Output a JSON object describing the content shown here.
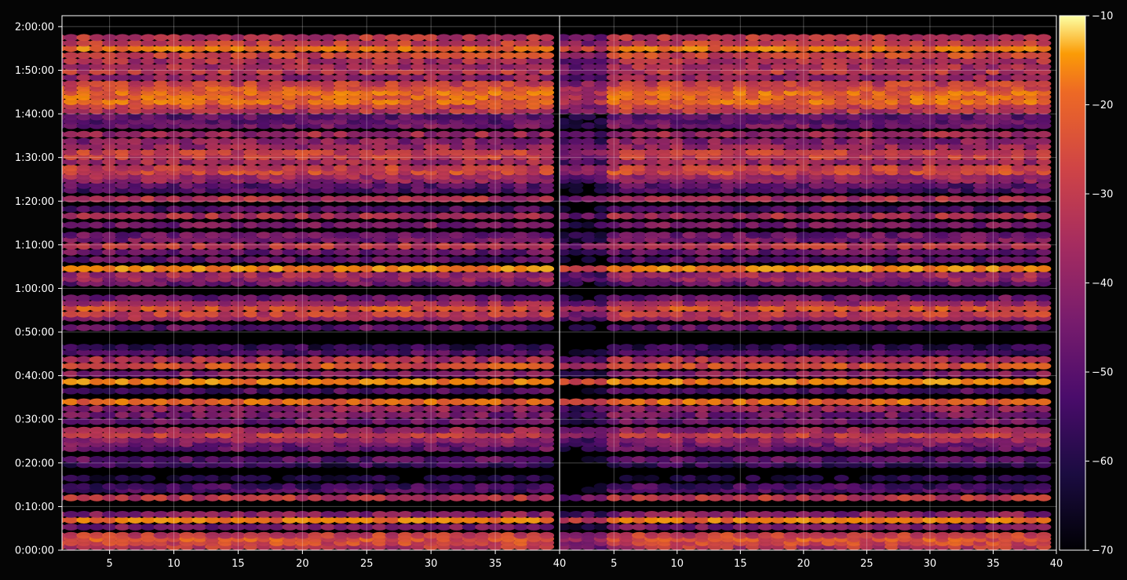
{
  "chart_data": {
    "type": "heatmap",
    "title": "",
    "xlabel": "",
    "ylabel": "",
    "panels": [
      {
        "name": "",
        "xlim": [
          1.3,
          40
        ]
      },
      {
        "name": "",
        "xlim": [
          0.7,
          40
        ]
      }
    ],
    "x_ticks": [
      "5",
      "10",
      "15",
      "20",
      "25",
      "30",
      "35",
      "40"
    ],
    "x_tick_values": [
      5,
      10,
      15,
      20,
      25,
      30,
      35,
      40
    ],
    "y_ticks": [
      "0:00:00",
      "0:10:00",
      "0:20:00",
      "0:30:00",
      "0:40:00",
      "0:50:00",
      "1:00:00",
      "1:10:00",
      "1:20:00",
      "1:30:00",
      "1:40:00",
      "1:50:00",
      "2:00:00"
    ],
    "y_tick_minutes": [
      0,
      10,
      20,
      30,
      40,
      50,
      60,
      70,
      80,
      90,
      100,
      110,
      120
    ],
    "ylim_minutes": [
      0,
      122.5
    ],
    "x_range": [
      1,
      39
    ],
    "grid": true,
    "colormap": "inferno",
    "colorbar": {
      "range": [
        -70,
        -10
      ],
      "ticks": [
        "−10",
        "−20",
        "−30",
        "−40",
        "−50",
        "−60",
        "−70"
      ],
      "tick_values": [
        -10,
        -20,
        -30,
        -40,
        -50,
        -60,
        -70
      ]
    },
    "bands": [
      {
        "t": 0.8,
        "level": -40
      },
      {
        "t": 1.7,
        "level": -36
      },
      {
        "t": 2.6,
        "level": -34
      },
      {
        "t": 3.4,
        "level": -38
      },
      {
        "t": 5.3,
        "level": -50
      },
      {
        "t": 6.9,
        "level": -28
      },
      {
        "t": 8.2,
        "level": -48
      },
      {
        "t": 12.0,
        "level": -40
      },
      {
        "t": 13.8,
        "level": -56
      },
      {
        "t": 14.6,
        "level": -58
      },
      {
        "t": 16.5,
        "level": -64
      },
      {
        "t": 19.6,
        "level": -60
      },
      {
        "t": 20.8,
        "level": -54
      },
      {
        "t": 23.3,
        "level": -52
      },
      {
        "t": 24.4,
        "level": -50
      },
      {
        "t": 25.3,
        "level": -46
      },
      {
        "t": 26.4,
        "level": -38
      },
      {
        "t": 27.5,
        "level": -46
      },
      {
        "t": 29.5,
        "level": -52
      },
      {
        "t": 31.0,
        "level": -50
      },
      {
        "t": 32.4,
        "level": -46
      },
      {
        "t": 34.0,
        "level": -30
      },
      {
        "t": 36.5,
        "level": -56
      },
      {
        "t": 38.6,
        "level": -26
      },
      {
        "t": 40.4,
        "level": -48
      },
      {
        "t": 42.2,
        "level": -34
      },
      {
        "t": 43.7,
        "level": -42
      },
      {
        "t": 45.3,
        "level": -56
      },
      {
        "t": 46.5,
        "level": -60
      },
      {
        "t": 51.0,
        "level": -54
      },
      {
        "t": 53.2,
        "level": -44
      },
      {
        "t": 54.1,
        "level": -38
      },
      {
        "t": 55.5,
        "level": -34
      },
      {
        "t": 56.6,
        "level": -44
      },
      {
        "t": 57.8,
        "level": -52
      },
      {
        "t": 61.2,
        "level": -52
      },
      {
        "t": 62.2,
        "level": -46
      },
      {
        "t": 63.1,
        "level": -44
      },
      {
        "t": 64.5,
        "level": -26
      },
      {
        "t": 66.6,
        "level": -54
      },
      {
        "t": 68.3,
        "level": -52
      },
      {
        "t": 69.7,
        "level": -40
      },
      {
        "t": 71.2,
        "level": -50
      },
      {
        "t": 72.2,
        "level": -52
      },
      {
        "t": 74.5,
        "level": -50
      },
      {
        "t": 76.6,
        "level": -42
      },
      {
        "t": 78.2,
        "level": -56
      },
      {
        "t": 80.5,
        "level": -42
      },
      {
        "t": 82.5,
        "level": -56
      },
      {
        "t": 83.6,
        "level": -54
      },
      {
        "t": 84.8,
        "level": -46
      },
      {
        "t": 85.7,
        "level": -44
      },
      {
        "t": 86.7,
        "level": -36
      },
      {
        "t": 87.6,
        "level": -38
      },
      {
        "t": 89.0,
        "level": -44
      },
      {
        "t": 90.2,
        "level": -38
      },
      {
        "t": 91.2,
        "level": -38
      },
      {
        "t": 92.5,
        "level": -44
      },
      {
        "t": 93.7,
        "level": -48
      },
      {
        "t": 95.3,
        "level": -44
      },
      {
        "t": 97.3,
        "level": -50
      },
      {
        "t": 98.3,
        "level": -54
      },
      {
        "t": 99.3,
        "level": -54
      },
      {
        "t": 100.7,
        "level": -40
      },
      {
        "t": 101.8,
        "level": -36
      },
      {
        "t": 102.8,
        "level": -30
      },
      {
        "t": 103.9,
        "level": -30
      },
      {
        "t": 104.9,
        "level": -30
      },
      {
        "t": 105.9,
        "level": -34
      },
      {
        "t": 106.9,
        "level": -38
      },
      {
        "t": 108.3,
        "level": -46
      },
      {
        "t": 109.7,
        "level": -40
      },
      {
        "t": 110.8,
        "level": -42
      },
      {
        "t": 112.1,
        "level": -42
      },
      {
        "t": 113.4,
        "level": -36
      },
      {
        "t": 115.0,
        "level": -28
      },
      {
        "t": 116.2,
        "level": -38
      },
      {
        "t": 117.5,
        "level": -40
      }
    ]
  }
}
